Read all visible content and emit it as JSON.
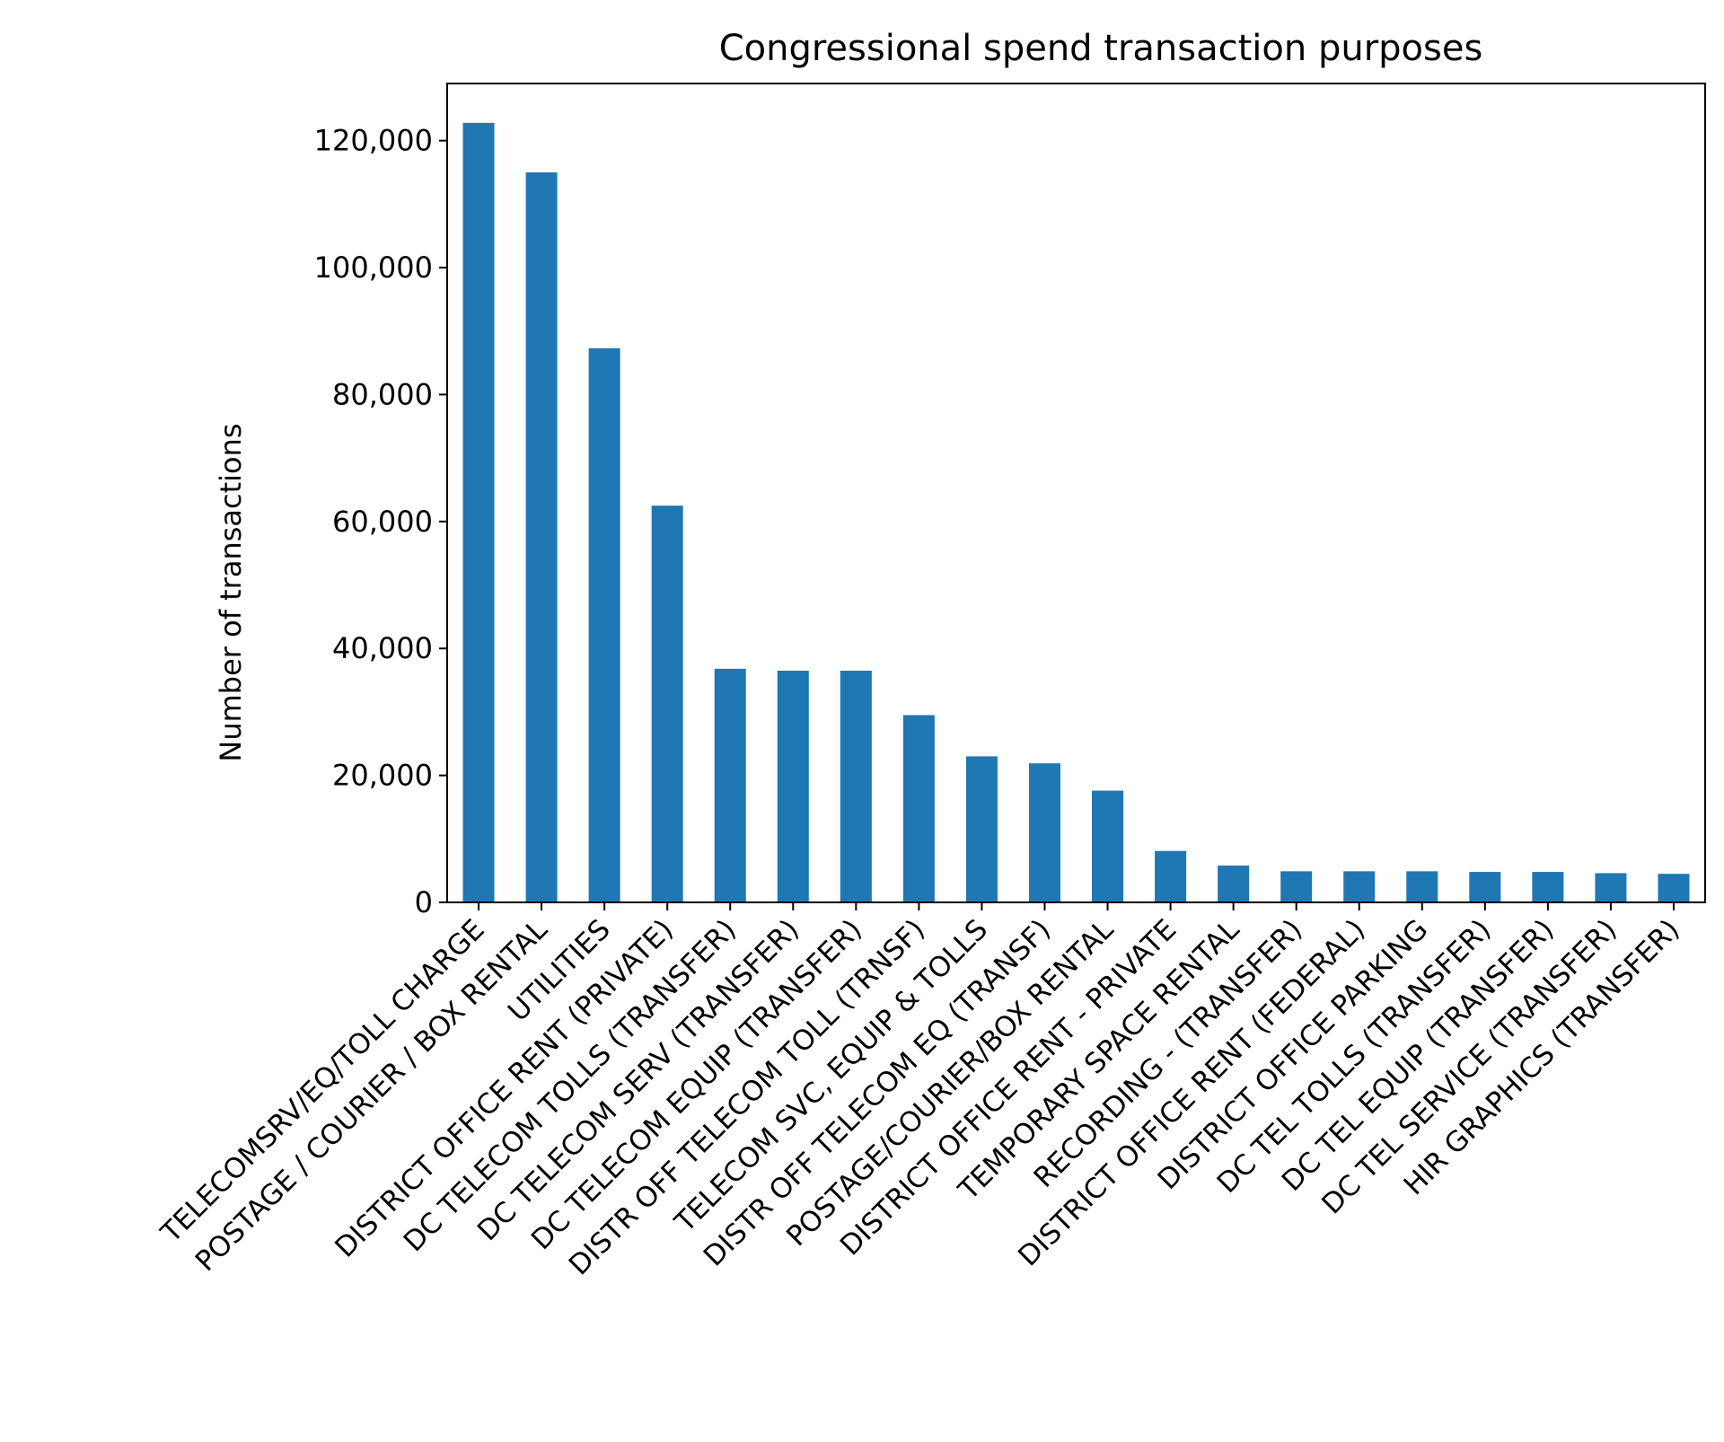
{
  "chart_data": {
    "type": "bar",
    "title": "Congressional spend transaction purposes",
    "xlabel": "",
    "ylabel": "Number of transactions",
    "categories": [
      "TELECOMSRV/EQ/TOLL CHARGE",
      "POSTAGE / COURIER / BOX RENTAL",
      "UTILITIES",
      "DISTRICT OFFICE RENT (PRIVATE)",
      "DC TELECOM TOLLS (TRANSFER)",
      "DC TELECOM SERV (TRANSFER)",
      "DC TELECOM EQUIP (TRANSFER)",
      "DISTR OFF TELECOM TOLL (TRNSF)",
      "TELECOM SVC, EQUIP & TOLLS",
      "DISTR OFF TELECOM EQ (TRANSF)",
      "POSTAGE/COURIER/BOX RENTAL",
      "DISTRICT OFFICE RENT - PRIVATE",
      "TEMPORARY SPACE RENTAL",
      "RECORDING - (TRANSFER)",
      "DISTRICT OFFICE RENT (FEDERAL)",
      "DISTRICT OFFICE PARKING",
      "DC TEL TOLLS (TRANSFER)",
      "DC TEL EQUIP (TRANSFER)",
      "DC TEL SERVICE (TRANSFER)",
      "HIR GRAPHICS (TRANSFER)"
    ],
    "values": [
      122800,
      115000,
      87300,
      62500,
      36800,
      36500,
      36500,
      29500,
      23000,
      21900,
      17600,
      8100,
      5800,
      4900,
      4900,
      4900,
      4800,
      4800,
      4600,
      4500
    ],
    "ylim": [
      0,
      129000
    ],
    "yticks": [
      0,
      20000,
      40000,
      60000,
      80000,
      100000,
      120000
    ],
    "ytick_labels": [
      "0",
      "20,000",
      "40,000",
      "60,000",
      "80,000",
      "100,000",
      "120,000"
    ],
    "bar_color": "#1f77b4",
    "grid": false,
    "legend": "none"
  }
}
